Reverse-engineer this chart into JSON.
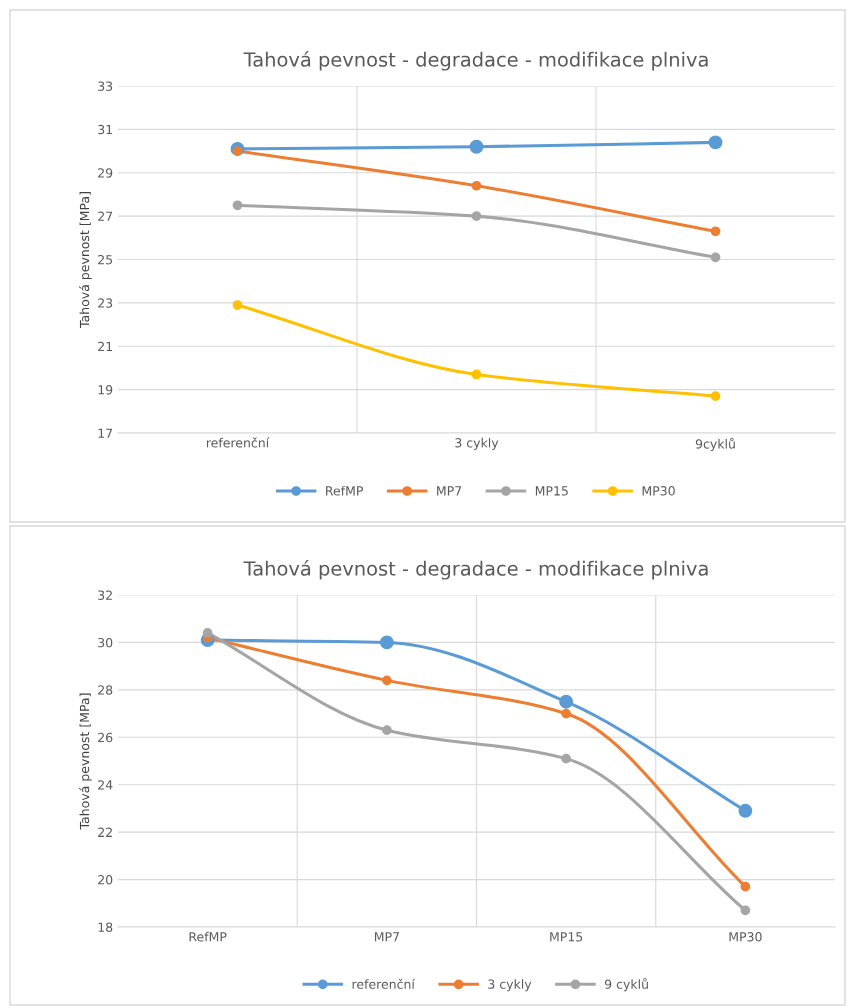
{
  "chart_data": [
    {
      "type": "line",
      "title": "Tahová pevnost - degradace - modifikace plniva",
      "ylabel": "Tahová pevnost [MPa]",
      "categories": [
        "referenční",
        "3 cykly",
        "9cyklů"
      ],
      "ylim": [
        17,
        33
      ],
      "yticks": [
        17,
        19,
        21,
        23,
        25,
        27,
        29,
        31,
        33
      ],
      "grid": true,
      "legend": "bottom",
      "marker": "circle",
      "line_style": "solid",
      "series": [
        {
          "name": "RefMP",
          "color": "#5b9bd5",
          "values": [
            30.1,
            30.2,
            30.4
          ]
        },
        {
          "name": "MP7",
          "color": "#ed7d31",
          "values": [
            30.0,
            28.4,
            26.3
          ]
        },
        {
          "name": "MP15",
          "color": "#a5a5a5",
          "values": [
            27.5,
            27.0,
            25.1
          ]
        },
        {
          "name": "MP30",
          "color": "#ffc000",
          "values": [
            22.9,
            19.7,
            18.7
          ]
        }
      ]
    },
    {
      "type": "line",
      "title": "Tahová pevnost - degradace - modifikace plniva",
      "ylabel": "Tahová pevnost [MPa]",
      "categories": [
        "RefMP",
        "MP7",
        "MP15",
        "MP30"
      ],
      "ylim": [
        18,
        32
      ],
      "yticks": [
        18,
        20,
        22,
        24,
        26,
        28,
        30,
        32
      ],
      "grid": true,
      "legend": "bottom",
      "marker": "circle",
      "line_style": "solid",
      "series": [
        {
          "name": "referenční",
          "color": "#5b9bd5",
          "values": [
            30.1,
            30.0,
            27.5,
            22.9
          ]
        },
        {
          "name": "3 cykly",
          "color": "#ed7d31",
          "values": [
            30.2,
            28.4,
            27.0,
            19.7
          ]
        },
        {
          "name": "9 cyklů",
          "color": "#a5a5a5",
          "values": [
            30.4,
            26.3,
            25.1,
            18.7
          ]
        }
      ]
    }
  ]
}
